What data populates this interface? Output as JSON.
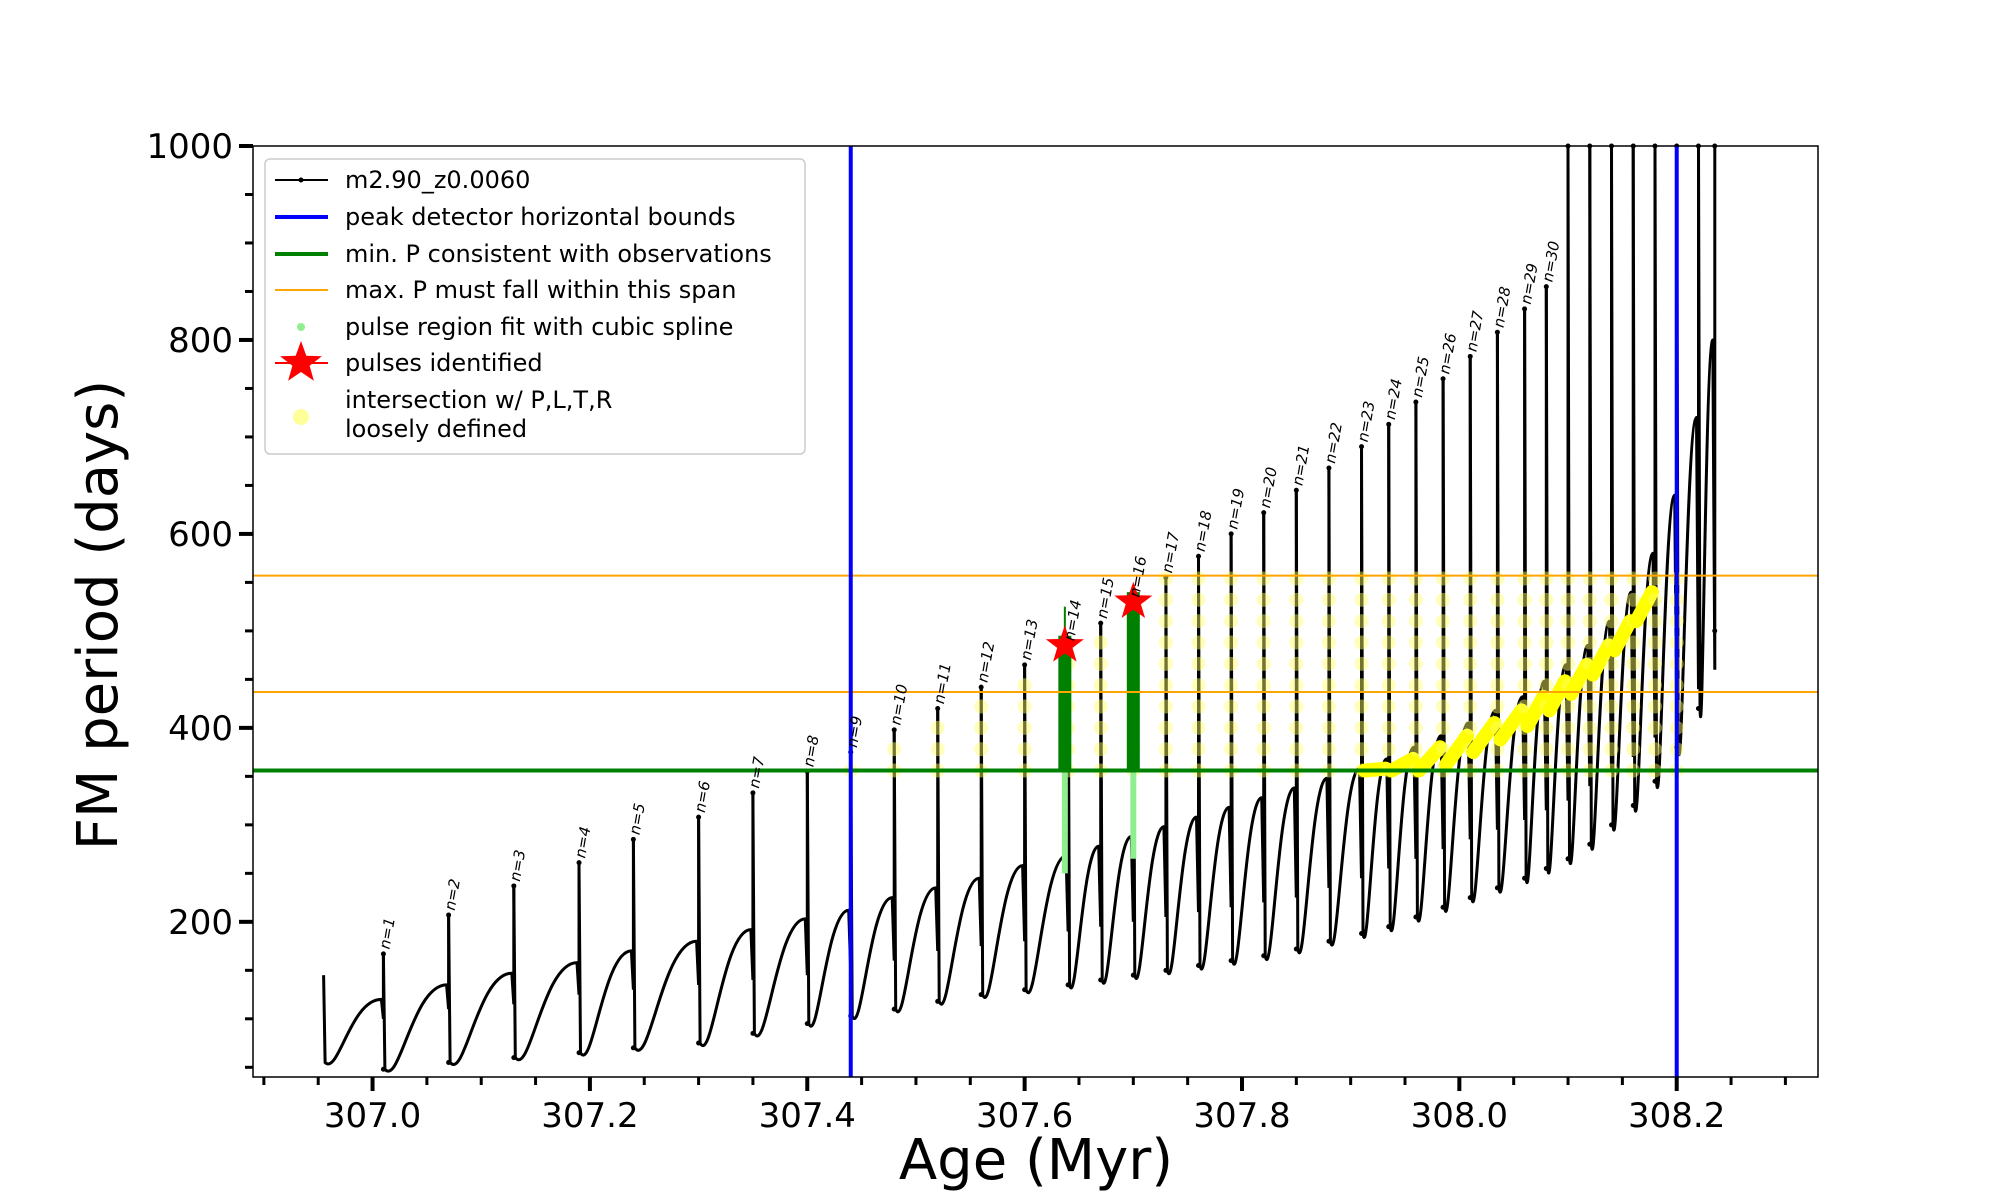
{
  "chart_data": {
    "type": "line",
    "xlabel": "Age (Myr)",
    "ylabel": "FM period (days)",
    "xlim": [
      306.89,
      308.33
    ],
    "ylim": [
      40,
      1000
    ],
    "xticks": [
      307.0,
      307.2,
      307.4,
      307.6,
      307.8,
      308.0,
      308.2
    ],
    "xtick_labels": [
      "307.0",
      "307.2",
      "307.4",
      "307.6",
      "307.8",
      "308.0",
      "308.2"
    ],
    "yticks": [
      200,
      400,
      600,
      800,
      1000
    ],
    "ytick_labels": [
      "200",
      "400",
      "600",
      "800",
      "1000"
    ],
    "grid": false,
    "legend_position": "top-left",
    "legend": [
      {
        "label": "m2.90_z0.0060",
        "kind": "line-marker",
        "color": "#000000"
      },
      {
        "label": "peak detector horizontal bounds",
        "kind": "line",
        "color": "#0000ff"
      },
      {
        "label": "min. P consistent with observations",
        "kind": "line",
        "color": "#008000"
      },
      {
        "label": "max. P must fall within this span",
        "kind": "thin-line",
        "color": "#ffa500"
      },
      {
        "label": "pulse region fit with cubic spline",
        "kind": "dot",
        "color": "#90ee90"
      },
      {
        "label": "pulses identified",
        "kind": "star",
        "color": "#ff0000"
      },
      {
        "label": "intersection w/ P,L,T,R",
        "label2": "loosely defined",
        "kind": "dot",
        "color": "#ffff99"
      }
    ],
    "vertical_lines": [
      {
        "x": 307.44,
        "color": "#0000ff",
        "name": "peak detector horizontal bounds"
      },
      {
        "x": 308.2,
        "color": "#0000ff",
        "name": "peak detector horizontal bounds"
      }
    ],
    "horizontal_lines": [
      {
        "y": 356,
        "color": "#008000",
        "name": "min. P consistent with observations"
      },
      {
        "y": 437,
        "color": "#ffa500",
        "name": "max. P span lower"
      },
      {
        "y": 557,
        "color": "#ffa500",
        "name": "max. P span upper"
      }
    ],
    "pulses": [
      {
        "label": "n=1",
        "x": 307.01,
        "peak": 167,
        "trough": 48,
        "pre": 120,
        "base": 100
      },
      {
        "label": "n=2",
        "x": 307.07,
        "peak": 207,
        "trough": 55,
        "pre": 135,
        "base": 110
      },
      {
        "label": "n=3",
        "x": 307.13,
        "peak": 237,
        "trough": 60,
        "pre": 147,
        "base": 115
      },
      {
        "label": "n=4",
        "x": 307.19,
        "peak": 261,
        "trough": 65,
        "pre": 158,
        "base": 125
      },
      {
        "label": "n=5",
        "x": 307.24,
        "peak": 285,
        "trough": 70,
        "pre": 170,
        "base": 130
      },
      {
        "label": "n=6",
        "x": 307.3,
        "peak": 308,
        "trough": 75,
        "pre": 180,
        "base": 135
      },
      {
        "label": "n=7",
        "x": 307.35,
        "peak": 333,
        "trough": 85,
        "pre": 192,
        "base": 140
      },
      {
        "label": "n=8",
        "x": 307.4,
        "peak": 355,
        "trough": 95,
        "pre": 203,
        "base": 145
      },
      {
        "label": "n=9",
        "x": 307.44,
        "peak": 375,
        "trough": 103,
        "pre": 212,
        "base": 150
      },
      {
        "label": "n=10",
        "x": 307.48,
        "peak": 398,
        "trough": 110,
        "pre": 225,
        "base": 160
      },
      {
        "label": "n=11",
        "x": 307.52,
        "peak": 420,
        "trough": 118,
        "pre": 235,
        "base": 170
      },
      {
        "label": "n=12",
        "x": 307.56,
        "peak": 442,
        "trough": 125,
        "pre": 245,
        "base": 175
      },
      {
        "label": "n=13",
        "x": 307.6,
        "peak": 465,
        "trough": 130,
        "pre": 258,
        "base": 180
      },
      {
        "label": "n=14",
        "x": 307.64,
        "peak": 485,
        "trough": 135,
        "pre": 268,
        "base": 190
      },
      {
        "label": "n=15",
        "x": 307.67,
        "peak": 508,
        "trough": 140,
        "pre": 278,
        "base": 195
      },
      {
        "label": "n=16",
        "x": 307.7,
        "peak": 530,
        "trough": 145,
        "pre": 288,
        "base": 200
      },
      {
        "label": "n=17",
        "x": 307.73,
        "peak": 555,
        "trough": 150,
        "pre": 298,
        "base": 205
      },
      {
        "label": "n=18",
        "x": 307.76,
        "peak": 577,
        "trough": 155,
        "pre": 308,
        "base": 210
      },
      {
        "label": "n=19",
        "x": 307.79,
        "peak": 600,
        "trough": 160,
        "pre": 318,
        "base": 215
      },
      {
        "label": "n=20",
        "x": 307.82,
        "peak": 622,
        "trough": 165,
        "pre": 328,
        "base": 220
      },
      {
        "label": "n=21",
        "x": 307.85,
        "peak": 645,
        "trough": 172,
        "pre": 338,
        "base": 225
      },
      {
        "label": "n=22",
        "x": 307.88,
        "peak": 668,
        "trough": 180,
        "pre": 348,
        "base": 235
      },
      {
        "label": "n=23",
        "x": 307.91,
        "peak": 690,
        "trough": 188,
        "pre": 358,
        "base": 245
      },
      {
        "label": "n=24",
        "x": 307.935,
        "peak": 713,
        "trough": 195,
        "pre": 368,
        "base": 255
      },
      {
        "label": "n=25",
        "x": 307.96,
        "peak": 736,
        "trough": 205,
        "pre": 380,
        "base": 265
      },
      {
        "label": "n=26",
        "x": 307.985,
        "peak": 760,
        "trough": 215,
        "pre": 392,
        "base": 275
      },
      {
        "label": "n=27",
        "x": 308.01,
        "peak": 783,
        "trough": 225,
        "pre": 405,
        "base": 285
      },
      {
        "label": "n=28",
        "x": 308.035,
        "peak": 808,
        "trough": 235,
        "pre": 418,
        "base": 295
      },
      {
        "label": "n=29",
        "x": 308.06,
        "peak": 832,
        "trough": 245,
        "pre": 432,
        "base": 305
      },
      {
        "label": "n=30",
        "x": 308.08,
        "peak": 855,
        "trough": 255,
        "pre": 448,
        "base": 315
      },
      {
        "label": "",
        "x": 308.1,
        "peak": 1000,
        "trough": 265,
        "pre": 465,
        "base": 325
      },
      {
        "label": "",
        "x": 308.12,
        "peak": 1000,
        "trough": 280,
        "pre": 485,
        "base": 340
      },
      {
        "label": "",
        "x": 308.14,
        "peak": 1000,
        "trough": 300,
        "pre": 510,
        "base": 355
      },
      {
        "label": "",
        "x": 308.16,
        "peak": 1000,
        "trough": 320,
        "pre": 540,
        "base": 370
      },
      {
        "label": "",
        "x": 308.18,
        "peak": 1000,
        "trough": 345,
        "pre": 580,
        "base": 390
      },
      {
        "label": "",
        "x": 308.2,
        "peak": 1000,
        "trough": 380,
        "pre": 640,
        "base": 410
      },
      {
        "label": "",
        "x": 308.22,
        "peak": 1000,
        "trough": 420,
        "pre": 720,
        "base": 440
      },
      {
        "label": "",
        "x": 308.235,
        "peak": 1000,
        "trough": 500,
        "pre": 800,
        "base": 460
      }
    ],
    "first_point": {
      "x": 306.955,
      "y": 145
    },
    "identified_pulses": [
      {
        "label": "n=14",
        "x": 307.637,
        "y": 485,
        "spline_min": 250,
        "spline_max": 525
      },
      {
        "label": "n=16",
        "x": 307.7,
        "y": 530,
        "spline_min": 265,
        "spline_max": 540
      }
    ]
  }
}
